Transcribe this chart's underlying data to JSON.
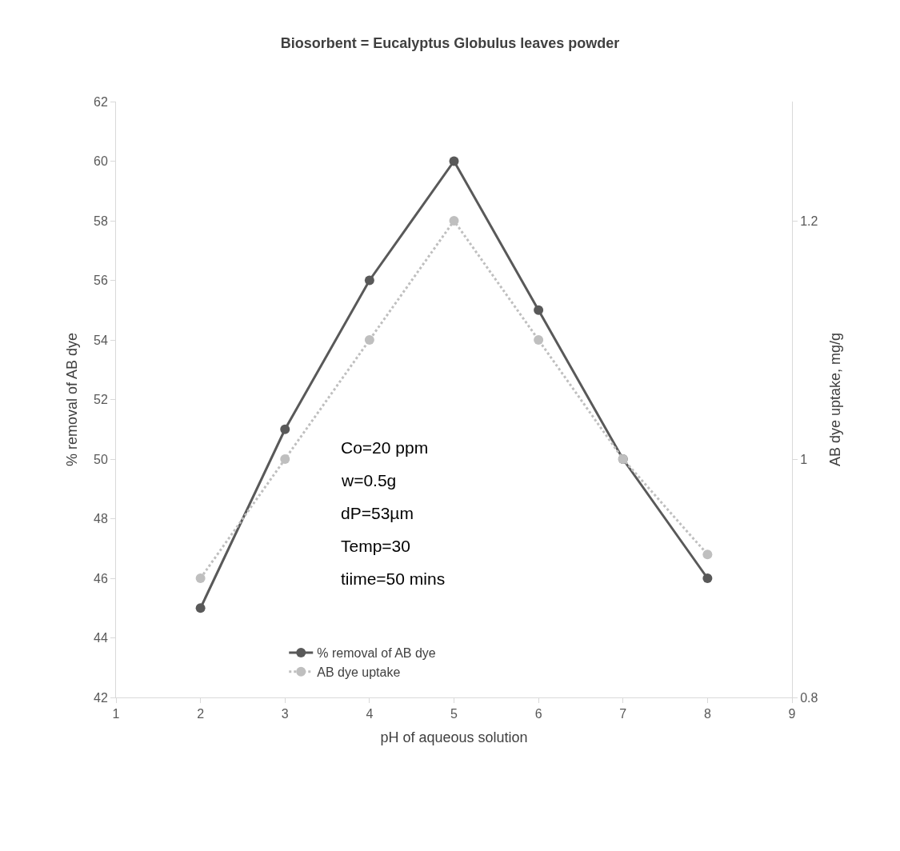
{
  "chart_data": {
    "type": "line",
    "title": "Biosorbent = Eucalyptus Globulus leaves powder",
    "xlabel": "pH of aqueous solution",
    "ylabel": "% removal of AB dye",
    "y2label": "AB dye uptake, mg/g",
    "x": [
      2,
      3,
      4,
      5,
      6,
      7,
      8
    ],
    "series": [
      {
        "name": "% removal of AB dye",
        "color": "#595959",
        "values": [
          45,
          51,
          56,
          60,
          55,
          50,
          46
        ],
        "line_style": "solid"
      },
      {
        "name": "AB dye uptake",
        "color": "#bfbfbf",
        "values": [
          0.9,
          1.0,
          1.1,
          1.2,
          1.1,
          1.0,
          0.92
        ],
        "axis": "y2",
        "line_style": "dotted"
      }
    ],
    "xlim": [
      1,
      9
    ],
    "xticks": [
      1,
      2,
      3,
      4,
      5,
      6,
      7,
      8,
      9
    ],
    "ylim": [
      42,
      62
    ],
    "yticks": [
      42,
      44,
      46,
      48,
      50,
      52,
      54,
      56,
      58,
      60,
      62
    ],
    "y2lim": [
      0.8,
      1.3
    ],
    "y2ticks": [
      0.8,
      1,
      1.2
    ],
    "annotations": [
      "Co=20 ppm",
      "w=0.5g",
      "dP=53µm",
      "Temp=30",
      "tiime=50 mins"
    ],
    "marker": "circle",
    "legend": "bottom"
  }
}
